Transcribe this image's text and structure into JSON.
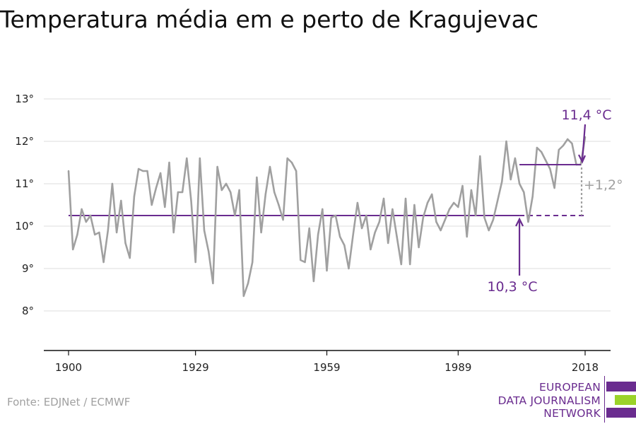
{
  "title": "Temperatura média em e perto de Kragujevac",
  "source": "Fonte: EDJNet / ECMWF",
  "logo": {
    "lines": [
      "EUROPEAN",
      "DATA JOURNALISM",
      "NETWORK"
    ],
    "colors": {
      "purple": "#6a2c8f",
      "green": "#9bd32a"
    }
  },
  "colors": {
    "series": "#a0a0a0",
    "average": "#6a2c8f",
    "grid": "#dddddd",
    "axis": "#111111"
  },
  "chart_data": {
    "type": "line",
    "title": "Temperatura média em e perto de Kragujevac",
    "xlabel": "",
    "ylabel": "",
    "x_ticks": [
      1900,
      1929,
      1959,
      1989,
      2018
    ],
    "y_ticks": [
      8,
      9,
      10,
      11,
      12,
      13
    ],
    "y_tick_labels": [
      "8°",
      "9°",
      "10°",
      "11°",
      "12°",
      "13°"
    ],
    "xlim": [
      1900,
      2018
    ],
    "ylim": [
      7.1,
      13.2
    ],
    "grid": "horizontal",
    "x": [
      1900,
      1901,
      1902,
      1903,
      1904,
      1905,
      1906,
      1907,
      1908,
      1909,
      1910,
      1911,
      1912,
      1913,
      1914,
      1915,
      1916,
      1917,
      1918,
      1919,
      1920,
      1921,
      1922,
      1923,
      1924,
      1925,
      1926,
      1927,
      1928,
      1929,
      1930,
      1931,
      1932,
      1933,
      1934,
      1935,
      1936,
      1937,
      1938,
      1939,
      1940,
      1941,
      1942,
      1943,
      1944,
      1945,
      1946,
      1947,
      1948,
      1949,
      1950,
      1951,
      1952,
      1953,
      1954,
      1955,
      1956,
      1957,
      1958,
      1959,
      1960,
      1961,
      1962,
      1963,
      1964,
      1965,
      1966,
      1967,
      1968,
      1969,
      1970,
      1971,
      1972,
      1973,
      1974,
      1975,
      1976,
      1977,
      1978,
      1979,
      1980,
      1981,
      1982,
      1983,
      1984,
      1985,
      1986,
      1987,
      1988,
      1989,
      1990,
      1991,
      1992,
      1993,
      1994,
      1995,
      1996,
      1997,
      1998,
      1999,
      2000,
      2001,
      2002,
      2003,
      2004,
      2005,
      2006,
      2007,
      2008,
      2009,
      2010,
      2011,
      2012,
      2013,
      2014,
      2015,
      2016,
      2017,
      2018
    ],
    "values": [
      11.3,
      9.45,
      9.8,
      10.4,
      10.1,
      10.25,
      9.8,
      9.85,
      9.15,
      9.9,
      11.0,
      9.85,
      10.6,
      9.6,
      9.25,
      10.7,
      11.35,
      11.3,
      11.3,
      10.5,
      10.9,
      11.25,
      10.45,
      11.5,
      9.85,
      10.8,
      10.8,
      11.6,
      10.6,
      9.15,
      11.6,
      9.9,
      9.4,
      8.65,
      11.4,
      10.85,
      11.0,
      10.8,
      10.25,
      10.85,
      8.35,
      8.65,
      9.15,
      11.15,
      9.85,
      10.75,
      11.4,
      10.8,
      10.5,
      10.15,
      11.6,
      11.5,
      11.3,
      9.2,
      9.15,
      9.95,
      8.7,
      9.8,
      10.4,
      8.95,
      10.2,
      10.25,
      9.75,
      9.55,
      9.0,
      9.8,
      10.55,
      9.95,
      10.25,
      9.45,
      9.85,
      10.1,
      10.65,
      9.6,
      10.4,
      9.75,
      9.1,
      10.65,
      9.1,
      10.5,
      9.5,
      10.2,
      10.55,
      10.75,
      10.1,
      9.9,
      10.15,
      10.4,
      10.55,
      10.45,
      10.95,
      9.75,
      10.85,
      10.25,
      11.65,
      10.2,
      9.9,
      10.15,
      10.6,
      11.05,
      12.0,
      11.1,
      11.6,
      11.0,
      10.8,
      10.1,
      10.7,
      11.85,
      11.75,
      11.55,
      11.35,
      10.9,
      11.8,
      11.9,
      12.05,
      11.95,
      11.45,
      11.45,
      12.1
    ],
    "annotations": {
      "baseline": {
        "label": "10,3 °C",
        "value": 10.25,
        "from": 1900,
        "to": 2018,
        "solid_to": 2003,
        "dashed_from": 2003
      },
      "recent": {
        "label": "11,4 °C",
        "value": 11.45,
        "from": 2003,
        "to": 2018
      },
      "difference": {
        "label": "+1,2°"
      }
    }
  }
}
